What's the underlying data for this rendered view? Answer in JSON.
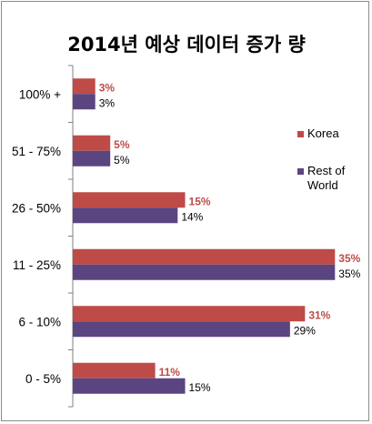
{
  "chart_data": {
    "type": "bar",
    "orientation": "horizontal",
    "title": "2014년 예상 데이터 증가 량",
    "categories": [
      "100% +",
      "51 - 75%",
      "26 - 50%",
      "11 - 25%",
      "6 - 10%",
      "0 - 5%"
    ],
    "series": [
      {
        "name": "Korea",
        "color": "#be4b48",
        "label_color": "#be4b48",
        "values": [
          3,
          5,
          15,
          35,
          31,
          11
        ],
        "labels": [
          "3%",
          "5%",
          "15%",
          "35%",
          "31%",
          "11%"
        ]
      },
      {
        "name": "Rest of World",
        "color": "#5b4580",
        "label_color": "#000000",
        "values": [
          3,
          5,
          14,
          35,
          29,
          15
        ],
        "labels": [
          "3%",
          "5%",
          "14%",
          "35%",
          "29%",
          "15%"
        ]
      }
    ],
    "xlim": [
      0,
      38
    ],
    "grid": false,
    "legend_position": "right"
  }
}
